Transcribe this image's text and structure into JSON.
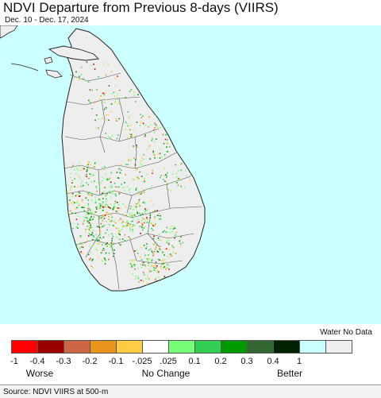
{
  "title": "NDVI Departure from Previous 8-days (VIIRS)",
  "date_range": "Dec. 10 - Dec. 17, 2024",
  "source": "Source: NDVI VIIRS at 500-m",
  "colors": {
    "water": "#ccffff",
    "land_no_data": "#eeeeee",
    "border": "#444444",
    "coast": "#222222"
  },
  "legend": {
    "water_no_data_label": "Water No Data",
    "colors": [
      "#ff0000",
      "#990000",
      "#cc6644",
      "#e8951e",
      "#ffcc44",
      "#ffffff",
      "#77ff77",
      "#33cc55",
      "#009900",
      "#336633",
      "#002200",
      "#ccffff",
      "#eeeeee"
    ],
    "ticks": [
      "-1",
      "-0.4",
      "-0.3",
      "-0.2",
      "-0.1",
      "-.025",
      ".025",
      "0.1",
      "0.2",
      "0.3",
      "0.4",
      "1"
    ],
    "worse_label": "Worse",
    "no_change_label": "No Change",
    "better_label": "Better"
  }
}
